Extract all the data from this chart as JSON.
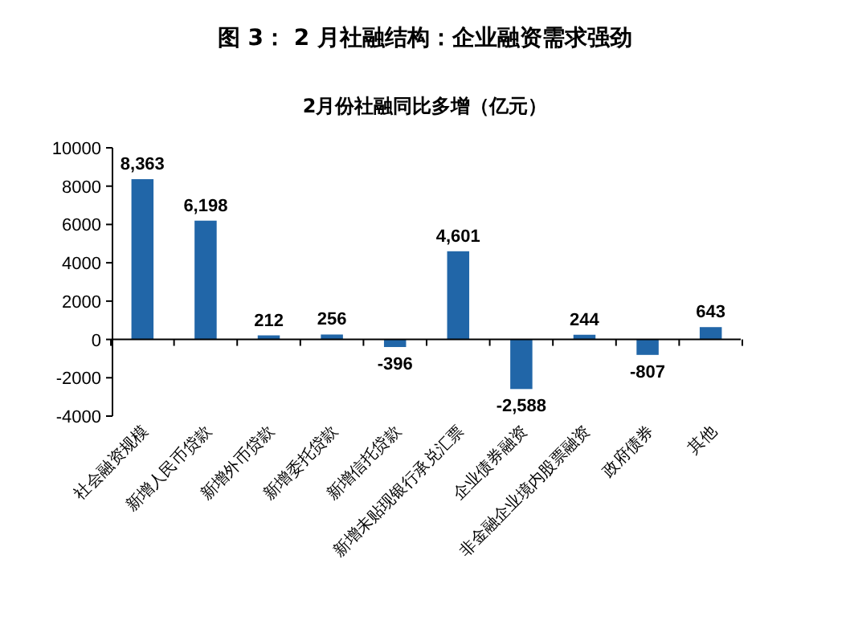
{
  "chart_data": {
    "type": "bar",
    "title": "图 3： 2 月社融结构：企业融资需求强劲",
    "subtitle": "2月份社融同比多增（亿元）",
    "categories": [
      "社会融资规模",
      "新增人民币贷款",
      "新增外币贷款",
      "新增委托贷款",
      "新增信托贷款",
      "新增未贴现银行承兑汇票",
      "企业债券融资",
      "非金融企业境内股票融资",
      "政府债券",
      "其他"
    ],
    "values": [
      8363,
      6198,
      212,
      256,
      -396,
      4601,
      -2588,
      244,
      -807,
      643
    ],
    "value_labels": [
      "8,363",
      "6,198",
      "212",
      "256",
      "-396",
      "4,601",
      "-2,588",
      "244",
      "-807",
      "643"
    ],
    "color": "#2166a8",
    "ylim": [
      -4000,
      10000
    ],
    "yticks": [
      -4000,
      -2000,
      0,
      2000,
      4000,
      6000,
      8000,
      10000
    ]
  }
}
